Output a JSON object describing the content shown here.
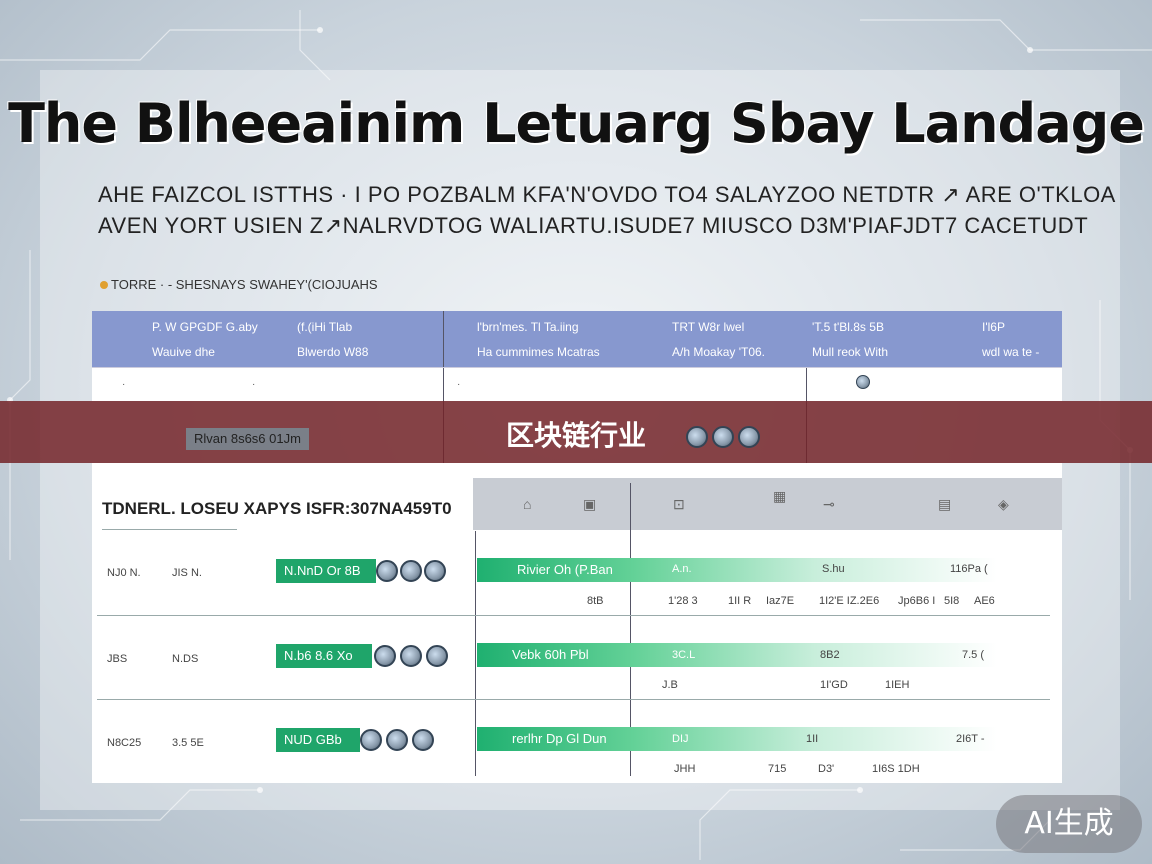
{
  "title": "The Blheeainim Letuarg Sbay Landage",
  "subtitle_line1": "AHE FAIZCOL ISTTHS · I PO POZBALM KFA'N'OVDO TO4 SALAYZOO NETDTR ↗ ARE O'TKLOA",
  "subtitle_line2": "AVEN YORT USIEN Z↗NALRVDTOG WALIARTU.ISUDE7 MIUSCO D3M'PIAFJDT7 CACETUDT",
  "small_caption": "TORRE · - SHESNAYS SWAHEY'(CIOJUAHS",
  "table1": {
    "headers": [
      {
        "line1": "P. W GPGDF G.aby",
        "line2": "Wauive        dhe"
      },
      {
        "line1": "(f.(iHi Tlab",
        "line2": "Blwerdo W88"
      },
      {
        "line1": "l'brn'mes. Tl Ta.iing",
        "line2": "Ha cummimes   Mcatras"
      },
      {
        "line1": "TRT W8r lwel",
        "line2": "A/h Moakay   'T06."
      },
      {
        "line1": "'T.5 t'Bl.8s     5B",
        "line2": "Mull reok With"
      },
      {
        "line1": "I'l6P",
        "line2": "wdl  wa te -"
      }
    ],
    "row_pill": "Rlvan 8s6s6 01Jm"
  },
  "banner_text": "区块链行业",
  "table2": {
    "title": "TDNERL. LOSEU XAPYS ISFR:307NA459T0",
    "rows": [
      {
        "left_a": "NJ0 N.",
        "left_b": "JIS N.",
        "pill": "N.NnD  Or  8B",
        "bar": "Rivier Oh    (P.Ban",
        "bar_val": "A.n.",
        "c1": "S.hu",
        "c2": "116Pa  (",
        "sub": [
          "8tB",
          "1'28 3",
          "1II R",
          "Iaz7E",
          "1I2'E  IZ.2E6",
          "Jp6B6 I",
          "5I8",
          "AE6"
        ]
      },
      {
        "left_a": "JBS",
        "left_b": "N.DS",
        "pill": "N.b6 8.6 Xo",
        "bar": "Vebk   60h   Pbl",
        "bar_val": "3C.L",
        "c1": "8B2",
        "c2": "7.5  (",
        "sub": [
          "J.B",
          "1I'GD",
          "1IEH"
        ]
      },
      {
        "left_a": "N8C25",
        "left_b": "3.5 5E",
        "pill": "NUD  GBb",
        "bar": "rerlhr Dp  Gl  Dun",
        "bar_val": "DIJ",
        "c1": "1II",
        "c2": "2I6T  -",
        "sub": [
          "JHH",
          "715",
          "D3'",
          "1I6S  1DH"
        ]
      }
    ]
  },
  "badge": "AI生成"
}
